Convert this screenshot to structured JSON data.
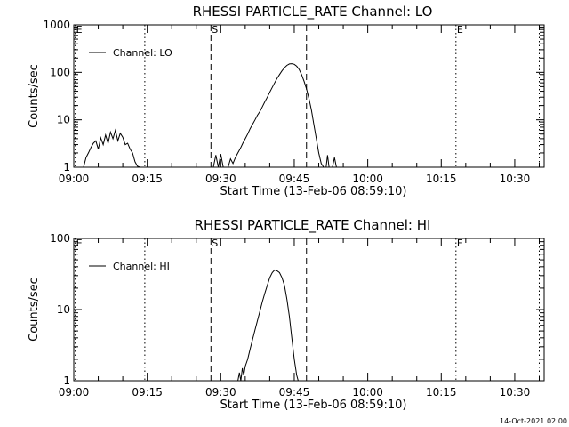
{
  "chart_data": [
    {
      "type": "line",
      "title": "RHESSI PARTICLE_RATE Channel: LO",
      "xlabel": "Start Time (13-Feb-06 08:59:10)",
      "ylabel": "Counts/sec",
      "yscale": "log",
      "xlim": [
        0,
        96
      ],
      "ylim": [
        1,
        1000
      ],
      "xticks": [
        "09:00",
        "09:15",
        "09:30",
        "09:45",
        "10:00",
        "10:15",
        "10:30"
      ],
      "yticks": [
        "1",
        "10",
        "100",
        "1000"
      ],
      "legend_position": "top-left",
      "series": [
        {
          "name": "Channel: LO",
          "segments": [
            [
              [
                2.0,
                1
              ],
              [
                2.5,
                1.6
              ],
              [
                3.0,
                2.0
              ],
              [
                3.5,
                2.6
              ],
              [
                4.0,
                3.2
              ],
              [
                4.5,
                3.6
              ],
              [
                5.0,
                2.4
              ],
              [
                5.5,
                4.2
              ],
              [
                6.0,
                3.0
              ],
              [
                6.5,
                4.8
              ],
              [
                7.0,
                3.2
              ],
              [
                7.5,
                5.5
              ],
              [
                8.0,
                4.0
              ],
              [
                8.5,
                6.0
              ],
              [
                9.0,
                3.6
              ],
              [
                9.5,
                5.2
              ],
              [
                10.0,
                4.3
              ],
              [
                10.5,
                3.0
              ],
              [
                11.0,
                3.2
              ],
              [
                11.5,
                2.4
              ],
              [
                12.0,
                2.0
              ],
              [
                12.5,
                1.3
              ],
              [
                13.0,
                1.05
              ],
              [
                13.5,
                1
              ]
            ],
            [
              [
                28.5,
                1
              ],
              [
                29.0,
                1.8
              ],
              [
                29.5,
                1
              ],
              [
                30.0,
                1.9
              ],
              [
                30.5,
                1
              ]
            ],
            [
              [
                31.5,
                1
              ],
              [
                32.0,
                1.5
              ],
              [
                32.5,
                1.2
              ],
              [
                33.0,
                1.6
              ],
              [
                33.5,
                2.0
              ],
              [
                34.0,
                2.5
              ],
              [
                34.5,
                3.2
              ],
              [
                35.0,
                4.0
              ],
              [
                35.5,
                5.0
              ],
              [
                36.0,
                6.5
              ],
              [
                36.5,
                8.0
              ],
              [
                37.0,
                10
              ],
              [
                37.5,
                12.5
              ],
              [
                38.0,
                15
              ],
              [
                38.5,
                19
              ],
              [
                39.0,
                24
              ],
              [
                39.5,
                30
              ],
              [
                40.0,
                38
              ],
              [
                40.5,
                48
              ],
              [
                41.0,
                60
              ],
              [
                41.5,
                75
              ],
              [
                42.0,
                90
              ],
              [
                42.5,
                108
              ],
              [
                43.0,
                125
              ],
              [
                43.5,
                140
              ],
              [
                44.0,
                150
              ],
              [
                44.5,
                152
              ],
              [
                45.0,
                148
              ],
              [
                45.5,
                135
              ],
              [
                46.0,
                115
              ],
              [
                46.5,
                90
              ],
              [
                47.0,
                65
              ],
              [
                47.5,
                45
              ],
              [
                48.0,
                28
              ],
              [
                48.5,
                16
              ],
              [
                49.0,
                8
              ],
              [
                49.5,
                4
              ],
              [
                50.0,
                2
              ],
              [
                50.5,
                1.2
              ],
              [
                51.0,
                1
              ]
            ],
            [
              [
                51.5,
                1
              ],
              [
                51.8,
                1.8
              ],
              [
                52.1,
                1
              ]
            ],
            [
              [
                52.8,
                1
              ],
              [
                53.2,
                1.6
              ],
              [
                53.6,
                1
              ]
            ]
          ]
        }
      ],
      "annotations": [
        {
          "label": "E",
          "x": 0.3,
          "style": "dotted"
        },
        {
          "x": 14.5,
          "style": "dotted"
        },
        {
          "label": "S",
          "x": 28.0,
          "style": "dashed"
        },
        {
          "x": 47.5,
          "style": "dashed"
        },
        {
          "label": "E",
          "x": 78.0,
          "style": "dotted"
        },
        {
          "x": 95.0,
          "style": "dotted"
        }
      ]
    },
    {
      "type": "line",
      "title": "RHESSI PARTICLE_RATE Channel: HI",
      "xlabel": "Start Time (13-Feb-06 08:59:10)",
      "ylabel": "Counts/sec",
      "yscale": "log",
      "xlim": [
        0,
        96
      ],
      "ylim": [
        1,
        100
      ],
      "xticks": [
        "09:00",
        "09:15",
        "09:30",
        "09:45",
        "10:00",
        "10:15",
        "10:30"
      ],
      "yticks": [
        "1",
        "10",
        "100"
      ],
      "legend_position": "top-left",
      "series": [
        {
          "name": "Channel: HI",
          "segments": [
            [
              [
                33.5,
                1
              ],
              [
                33.8,
                1.3
              ],
              [
                34.1,
                1
              ],
              [
                34.4,
                1.5
              ],
              [
                34.7,
                1.2
              ],
              [
                35.0,
                1.6
              ],
              [
                35.5,
                2.0
              ],
              [
                36.0,
                2.8
              ],
              [
                36.5,
                3.8
              ],
              [
                37.0,
                5.2
              ],
              [
                37.5,
                7.0
              ],
              [
                38.0,
                9.5
              ],
              [
                38.5,
                13
              ],
              [
                39.0,
                17
              ],
              [
                39.5,
                22
              ],
              [
                40.0,
                28
              ],
              [
                40.5,
                33
              ],
              [
                41.0,
                36
              ],
              [
                41.5,
                35
              ],
              [
                42.0,
                33
              ],
              [
                42.5,
                28
              ],
              [
                43.0,
                22
              ],
              [
                43.5,
                14
              ],
              [
                44.0,
                8
              ],
              [
                44.5,
                4
              ],
              [
                45.0,
                2
              ],
              [
                45.5,
                1.2
              ],
              [
                45.8,
                1
              ]
            ]
          ]
        }
      ],
      "annotations": [
        {
          "label": "E",
          "x": 0.3,
          "style": "dotted"
        },
        {
          "x": 14.5,
          "style": "dotted"
        },
        {
          "label": "S",
          "x": 28.0,
          "style": "dashed"
        },
        {
          "x": 47.5,
          "style": "dashed"
        },
        {
          "label": "E",
          "x": 78.0,
          "style": "dotted"
        },
        {
          "x": 95.0,
          "style": "dotted"
        }
      ]
    }
  ],
  "footer": {
    "timestamp": "14-Oct-2021 02:00"
  }
}
